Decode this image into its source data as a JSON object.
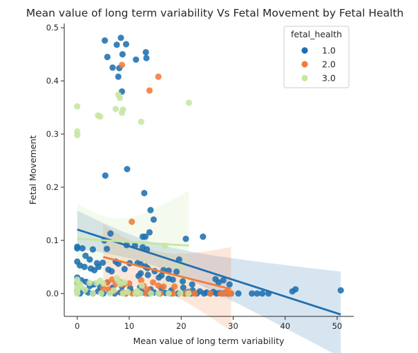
{
  "chart_data": {
    "type": "scatter",
    "title": "Mean value of long term variability Vs Fetal Movement by Fetal Health",
    "xlabel": "Mean value of long term variability",
    "ylabel": "Fetal Movement",
    "xlim": [
      -2.5,
      53.2
    ],
    "ylim": [
      -0.043,
      0.508
    ],
    "xticks": [
      0,
      10,
      20,
      30,
      40,
      50
    ],
    "yticks": [
      0.0,
      0.1,
      0.2,
      0.3,
      0.4,
      0.5
    ],
    "xtick_labels": [
      "0",
      "10",
      "20",
      "30",
      "40",
      "50"
    ],
    "ytick_labels": [
      "0.0",
      "0.1",
      "0.2",
      "0.3",
      "0.4",
      "0.5"
    ],
    "legend": {
      "title": "fetal_health",
      "placement": "top-right"
    },
    "series": [
      {
        "name": "1.0",
        "color": "#1f6fb0",
        "points": [
          [
            5.3,
            0.476
          ],
          [
            8.4,
            0.481
          ],
          [
            7.6,
            0.468
          ],
          [
            9.4,
            0.469
          ],
          [
            13.2,
            0.454
          ],
          [
            5.8,
            0.445
          ],
          [
            8.7,
            0.45
          ],
          [
            13.3,
            0.443
          ],
          [
            11.3,
            0.44
          ],
          [
            6.8,
            0.425
          ],
          [
            8.1,
            0.424
          ],
          [
            7.9,
            0.408
          ],
          [
            8.6,
            0.38
          ],
          [
            9.6,
            0.234
          ],
          [
            5.4,
            0.222
          ],
          [
            12.9,
            0.189
          ],
          [
            14.1,
            0.157
          ],
          [
            14.7,
            0.139
          ],
          [
            13.9,
            0.115
          ],
          [
            24.2,
            0.107
          ],
          [
            12.6,
            0.107
          ],
          [
            13.1,
            0.107
          ],
          [
            20.9,
            0.103
          ],
          [
            6.4,
            0.113
          ],
          [
            5.2,
            0.1
          ],
          [
            0,
            0.088
          ],
          [
            0,
            0.085
          ],
          [
            1.0,
            0.085
          ],
          [
            3.0,
            0.083
          ],
          [
            9.5,
            0.091
          ],
          [
            11.1,
            0.09
          ],
          [
            12.6,
            0.087
          ],
          [
            13.4,
            0.083
          ],
          [
            5.7,
            0.084
          ],
          [
            1.6,
            0.071
          ],
          [
            2.4,
            0.064
          ],
          [
            3.8,
            0.057
          ],
          [
            4.9,
            0.058
          ],
          [
            7.4,
            0.06
          ],
          [
            7.9,
            0.056
          ],
          [
            10.1,
            0.057
          ],
          [
            11.6,
            0.057
          ],
          [
            12.2,
            0.055
          ],
          [
            13.1,
            0.051
          ],
          [
            13.5,
            0.048
          ],
          [
            19.6,
            0.064
          ],
          [
            0,
            0.06
          ],
          [
            0.5,
            0.053
          ],
          [
            1.4,
            0.05
          ],
          [
            2.6,
            0.047
          ],
          [
            3.3,
            0.044
          ],
          [
            4.1,
            0.05
          ],
          [
            6.0,
            0.045
          ],
          [
            6.6,
            0.042
          ],
          [
            9.1,
            0.046
          ],
          [
            12.2,
            0.038
          ],
          [
            14.9,
            0.042
          ],
          [
            16.6,
            0.044
          ],
          [
            17.6,
            0.043
          ],
          [
            19.1,
            0.041
          ],
          [
            11.8,
            0.033
          ],
          [
            13.6,
            0.035
          ],
          [
            15.7,
            0.03
          ],
          [
            16.2,
            0.034
          ],
          [
            17.6,
            0.028
          ],
          [
            18.4,
            0.026
          ],
          [
            20.3,
            0.023
          ],
          [
            22.1,
            0.017
          ],
          [
            26.6,
            0.027
          ],
          [
            27.2,
            0.021
          ],
          [
            28.1,
            0.025
          ],
          [
            29.3,
            0.017
          ],
          [
            0,
            0.03
          ],
          [
            0,
            0.02
          ],
          [
            0.8,
            0.025
          ],
          [
            1.7,
            0.022
          ],
          [
            2.4,
            0.014
          ],
          [
            3.2,
            0.017
          ],
          [
            4.4,
            0.013
          ],
          [
            5.8,
            0.021
          ],
          [
            6.8,
            0.011
          ],
          [
            8.6,
            0.013
          ],
          [
            10.2,
            0.01
          ],
          [
            12.1,
            0.012
          ],
          [
            14.1,
            0.008
          ],
          [
            16.2,
            0.01
          ],
          [
            18.1,
            0.006
          ],
          [
            20.4,
            0.011
          ],
          [
            22.2,
            0.006
          ],
          [
            23.6,
            0.004
          ],
          [
            24.9,
            0.002
          ],
          [
            26.2,
            0.003
          ],
          [
            27.4,
            0.001
          ],
          [
            28.6,
            0.002
          ],
          [
            29.6,
            0
          ],
          [
            31.0,
            0
          ],
          [
            33.6,
            0
          ],
          [
            34.6,
            0
          ],
          [
            35.6,
            0
          ],
          [
            36.8,
            0
          ],
          [
            41.4,
            0.004
          ],
          [
            42.0,
            0.008
          ],
          [
            50.7,
            0.006
          ],
          [
            0,
            0.004
          ],
          [
            0.5,
            0
          ],
          [
            1.2,
            0.006
          ],
          [
            2.1,
            0.002
          ],
          [
            3.0,
            0
          ],
          [
            4.0,
            0.004
          ],
          [
            5.0,
            0
          ],
          [
            6.2,
            0.003
          ],
          [
            7.2,
            0
          ],
          [
            8.3,
            0.002
          ],
          [
            9.3,
            0
          ],
          [
            10.4,
            0.003
          ],
          [
            11.4,
            0
          ],
          [
            12.6,
            0.002
          ],
          [
            13.7,
            0
          ],
          [
            14.8,
            0.002
          ],
          [
            15.8,
            0
          ],
          [
            17.0,
            0.001
          ],
          [
            18.0,
            0
          ],
          [
            19.4,
            0
          ],
          [
            20.7,
            0
          ],
          [
            21.9,
            0
          ],
          [
            23.0,
            0
          ],
          [
            24.4,
            0
          ],
          [
            25.6,
            0
          ],
          [
            26.8,
            0
          ],
          [
            28.0,
            0
          ],
          [
            29.0,
            0
          ],
          [
            21.4,
            0.003
          ]
        ]
      },
      {
        "name": "2.0",
        "color": "#f27a3a",
        "points": [
          [
            8.6,
            0.43
          ],
          [
            15.6,
            0.408
          ],
          [
            13.9,
            0.382
          ],
          [
            10.5,
            0.135
          ],
          [
            11.8,
            0.001
          ],
          [
            13.6,
            0.007
          ],
          [
            12.8,
            0.014
          ],
          [
            12.3,
            0.025
          ],
          [
            5.8,
            0.021
          ],
          [
            6.7,
            0.026
          ],
          [
            7.4,
            0.018
          ],
          [
            8.2,
            0.022
          ],
          [
            9.0,
            0.017
          ],
          [
            10.0,
            0.019
          ],
          [
            14.6,
            0.021
          ],
          [
            15.6,
            0.015
          ],
          [
            16.6,
            0.013
          ],
          [
            18.7,
            0.013
          ],
          [
            5.0,
            0.01
          ],
          [
            7.0,
            0.004
          ],
          [
            8.8,
            0.002
          ],
          [
            10.6,
            0
          ],
          [
            13.2,
            0
          ],
          [
            16.0,
            0
          ],
          [
            21.4,
            0
          ],
          [
            21.6,
            0.002
          ],
          [
            27.6,
            0
          ],
          [
            28.3,
            0
          ],
          [
            29.3,
            0
          ],
          [
            29.6,
            0
          ],
          [
            28.8,
            0.003
          ],
          [
            25.6,
            0
          ],
          [
            22.6,
            0
          ],
          [
            20.7,
            0
          ],
          [
            18.5,
            0
          ],
          [
            9.4,
            0
          ],
          [
            6.0,
            0.008
          ]
        ]
      },
      {
        "name": "3.0",
        "color": "#c6e6a3",
        "points": [
          [
            0,
            0.352
          ],
          [
            0,
            0.305
          ],
          [
            0,
            0.298
          ],
          [
            4.0,
            0.335
          ],
          [
            4.4,
            0.333
          ],
          [
            7.9,
            0.374
          ],
          [
            8.2,
            0.368
          ],
          [
            7.4,
            0.347
          ],
          [
            8.8,
            0.346
          ],
          [
            8.6,
            0.34
          ],
          [
            12.3,
            0.323
          ],
          [
            21.5,
            0.359
          ],
          [
            16.9,
            0.09
          ],
          [
            19.6,
            0.055
          ],
          [
            7.6,
            0.029
          ],
          [
            7.9,
            0.024
          ],
          [
            8.3,
            0.018
          ],
          [
            9.1,
            0.021
          ],
          [
            2.4,
            0.02
          ],
          [
            3.7,
            0.02
          ],
          [
            4.4,
            0.024
          ],
          [
            5.0,
            0.019
          ],
          [
            12.4,
            0.015
          ],
          [
            0,
            0.026
          ],
          [
            0,
            0.022
          ],
          [
            0.5,
            0.018
          ],
          [
            0,
            0.013
          ],
          [
            0,
            0.008
          ],
          [
            0,
            0.003
          ],
          [
            0,
            0
          ],
          [
            1.5,
            0.007
          ],
          [
            3.0,
            0
          ],
          [
            4.6,
            0
          ],
          [
            6.3,
            0
          ],
          [
            8.8,
            0
          ],
          [
            11.2,
            0
          ],
          [
            12.1,
            0
          ],
          [
            14.2,
            0
          ],
          [
            15.6,
            0
          ],
          [
            17.6,
            0
          ],
          [
            19.8,
            0
          ],
          [
            21.4,
            0
          ],
          [
            0.8,
            0.012
          ],
          [
            7.0,
            0.006
          ],
          [
            9.7,
            0.003
          ],
          [
            11.5,
            0.005
          ]
        ]
      }
    ]
  }
}
